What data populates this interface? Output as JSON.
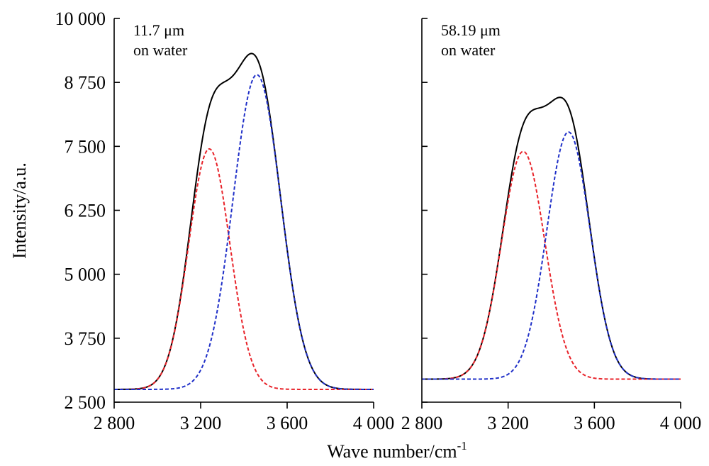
{
  "chart_data": [
    {
      "type": "line",
      "panel": "left",
      "xlim": [
        2800,
        4000
      ],
      "ylim": [
        2500,
        10000
      ],
      "x_ticks": [
        2800,
        3200,
        3600,
        4000
      ],
      "x_tick_labels": [
        "2 800",
        "3 200",
        "3 600",
        "4 000"
      ],
      "y_ticks": [
        2500,
        3750,
        5000,
        6250,
        7500,
        8750,
        10000
      ],
      "y_tick_labels": [
        "2 500",
        "3 750",
        "5 000",
        "6 250",
        "7 500",
        "8 750",
        "10 000"
      ],
      "ylabel": "Intensity/a.u.",
      "annotation": [
        "11.7 μm",
        "on water"
      ],
      "baseline": 2750,
      "series": [
        {
          "style": "solid",
          "color": "#000000",
          "peaks": [
            {
              "center": 3240,
              "sigma": 95,
              "amplitude": 4700
            },
            {
              "center": 3460,
              "sigma": 110,
              "amplitude": 6150
            }
          ]
        },
        {
          "style": "dashed",
          "color": "#e8232a",
          "peaks": [
            {
              "center": 3240,
              "sigma": 95,
              "amplitude": 4700
            }
          ]
        },
        {
          "style": "dashed",
          "color": "#2030c8",
          "peaks": [
            {
              "center": 3460,
              "sigma": 110,
              "amplitude": 6150
            }
          ]
        }
      ]
    },
    {
      "type": "line",
      "panel": "right",
      "xlim": [
        2800,
        4000
      ],
      "ylim": [
        2500,
        10000
      ],
      "x_ticks": [
        2800,
        3200,
        3600,
        4000
      ],
      "x_tick_labels": [
        "2 800",
        "3 200",
        "3 600",
        "4 000"
      ],
      "y_ticks": [
        2500,
        3750,
        5000,
        6250,
        7500,
        8750,
        10000
      ],
      "annotation": [
        "58.19 μm",
        "on water"
      ],
      "baseline": 2950,
      "series": [
        {
          "style": "solid",
          "color": "#000000",
          "peaks": [
            {
              "center": 3270,
              "sigma": 100,
              "amplitude": 4450
            },
            {
              "center": 3480,
              "sigma": 100,
              "amplitude": 4830
            }
          ]
        },
        {
          "style": "dashed",
          "color": "#e8232a",
          "peaks": [
            {
              "center": 3270,
              "sigma": 100,
              "amplitude": 4450
            }
          ]
        },
        {
          "style": "dashed",
          "color": "#2030c8",
          "peaks": [
            {
              "center": 3480,
              "sigma": 100,
              "amplitude": 4830
            }
          ]
        }
      ]
    }
  ],
  "xlabel": "Wave number/cm",
  "xlabel_sup": "-1"
}
